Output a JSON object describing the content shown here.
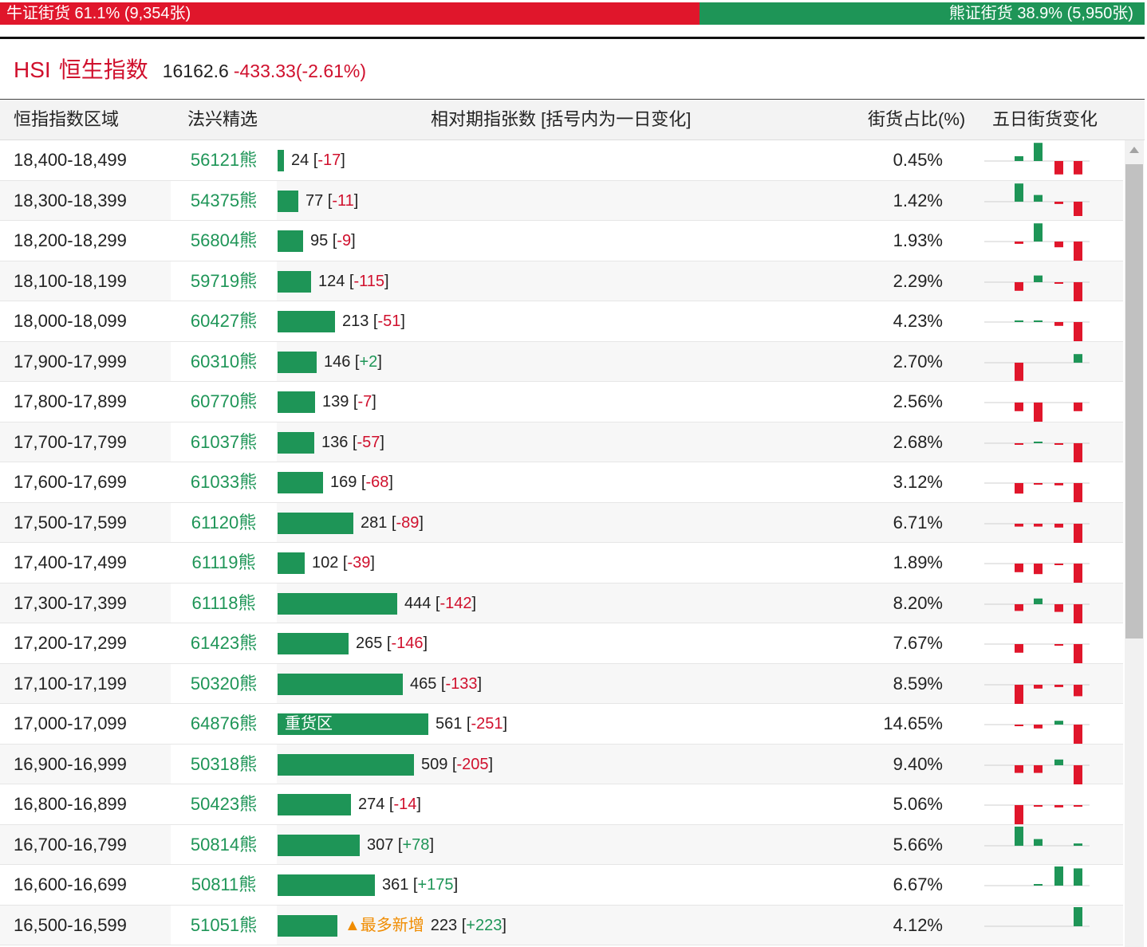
{
  "ratio_bar": {
    "bull_label": "牛证街货 61.1% (9,354张)",
    "bull_fraction": 0.611,
    "bear_label": "熊证街货 38.9% (5,950张)",
    "bear_fraction": 0.389
  },
  "index": {
    "code": "HSI",
    "name": "恒生指数",
    "value": "16162.6",
    "change": "-433.33(-2.61%)"
  },
  "columns": {
    "range": "恒指指数区域",
    "pick": "法兴精选",
    "contracts": "相对期指张数 [括号内为一日变化]",
    "ratio": "街货占比(%)",
    "five_day": "五日街货变化"
  },
  "colors": {
    "bull_red": "#e0162b",
    "bear_green": "#1e9557",
    "new_orange": "#f08c00"
  },
  "rows": [
    {
      "range": "18,400-18,499",
      "pick": "56121熊",
      "count": 24,
      "change": "-17",
      "ratio": "0.45%",
      "spark": [
        0,
        0,
        0.25,
        0.95,
        -0.7,
        -0.7
      ]
    },
    {
      "range": "18,300-18,399",
      "pick": "54375熊",
      "count": 77,
      "change": "-11",
      "ratio": "1.42%",
      "spark": [
        0,
        0,
        0.95,
        0.35,
        -0.12,
        -0.75
      ]
    },
    {
      "range": "18,200-18,299",
      "pick": "56804熊",
      "count": 95,
      "change": "-9",
      "ratio": "1.93%",
      "spark": [
        0,
        0,
        -0.12,
        0.95,
        -0.3,
        -1.0
      ]
    },
    {
      "range": "18,100-18,199",
      "pick": "59719熊",
      "count": 124,
      "change": "-115",
      "ratio": "2.29%",
      "spark": [
        0,
        0,
        -0.45,
        0.35,
        -0.08,
        -1.0
      ]
    },
    {
      "range": "18,000-18,099",
      "pick": "60427熊",
      "count": 213,
      "change": "-51",
      "ratio": "4.23%",
      "spark": [
        0,
        0,
        0.08,
        0.08,
        -0.2,
        -1.0
      ]
    },
    {
      "range": "17,900-17,999",
      "pick": "60310熊",
      "count": 146,
      "change": "+2",
      "ratio": "2.70%",
      "spark": [
        0,
        0,
        -0.95,
        0,
        0,
        0.45
      ]
    },
    {
      "range": "17,800-17,899",
      "pick": "60770熊",
      "count": 139,
      "change": "-7",
      "ratio": "2.56%",
      "spark": [
        0,
        0,
        -0.45,
        -1.0,
        0,
        -0.45
      ]
    },
    {
      "range": "17,700-17,799",
      "pick": "61037熊",
      "count": 136,
      "change": "-57",
      "ratio": "2.68%",
      "spark": [
        0,
        0,
        -0.08,
        0.08,
        -0.08,
        -1.0
      ]
    },
    {
      "range": "17,600-17,699",
      "pick": "61033熊",
      "count": 169,
      "change": "-68",
      "ratio": "3.12%",
      "spark": [
        0,
        0,
        -0.55,
        -0.05,
        -0.12,
        -1.0
      ]
    },
    {
      "range": "17,500-17,599",
      "pick": "61120熊",
      "count": 281,
      "change": "-89",
      "ratio": "6.71%",
      "spark": [
        0,
        0,
        -0.15,
        -0.15,
        -0.2,
        -1.0
      ]
    },
    {
      "range": "17,400-17,499",
      "pick": "61119熊",
      "count": 102,
      "change": "-39",
      "ratio": "1.89%",
      "spark": [
        0,
        0,
        -0.45,
        -0.55,
        -0.08,
        -1.0
      ]
    },
    {
      "range": "17,300-17,399",
      "pick": "61118熊",
      "count": 444,
      "change": "-142",
      "ratio": "8.20%",
      "spark": [
        0,
        0,
        -0.35,
        0.3,
        -0.4,
        -1.0
      ]
    },
    {
      "range": "17,200-17,299",
      "pick": "61423熊",
      "count": 265,
      "change": "-146",
      "ratio": "7.67%",
      "spark": [
        0,
        0,
        -0.45,
        0,
        -0.05,
        -1.0
      ]
    },
    {
      "range": "17,100-17,199",
      "pick": "50320熊",
      "count": 465,
      "change": "-133",
      "ratio": "8.59%",
      "spark": [
        0,
        0,
        -1.0,
        -0.2,
        -0.12,
        -0.6
      ]
    },
    {
      "range": "17,000-17,099",
      "pick": "64876熊",
      "count": 561,
      "change": "-251",
      "ratio": "14.65%",
      "spark": [
        0,
        0,
        -0.05,
        -0.2,
        0.2,
        -1.0
      ],
      "tag": "重货区"
    },
    {
      "range": "16,900-16,999",
      "pick": "50318熊",
      "count": 509,
      "change": "-205",
      "ratio": "9.40%",
      "spark": [
        0,
        0,
        -0.4,
        -0.4,
        0.3,
        -1.0
      ]
    },
    {
      "range": "16,800-16,899",
      "pick": "50423熊",
      "count": 274,
      "change": "-14",
      "ratio": "5.06%",
      "spark": [
        0,
        0,
        -1.0,
        -0.08,
        -0.12,
        -0.05
      ]
    },
    {
      "range": "16,700-16,799",
      "pick": "50814熊",
      "count": 307,
      "change": "+78",
      "ratio": "5.66%",
      "spark": [
        0,
        0,
        1.0,
        0.35,
        0,
        0.12
      ]
    },
    {
      "range": "16,600-16,699",
      "pick": "50811熊",
      "count": 361,
      "change": "+175",
      "ratio": "6.67%",
      "spark": [
        0,
        0,
        0,
        0.08,
        1.0,
        0.9
      ]
    },
    {
      "range": "16,500-16,599",
      "pick": "51051熊",
      "count": 223,
      "change": "+223",
      "ratio": "4.12%",
      "spark": [
        0,
        0,
        0,
        0,
        0,
        1.0
      ],
      "note": "▲最多新增"
    }
  ]
}
